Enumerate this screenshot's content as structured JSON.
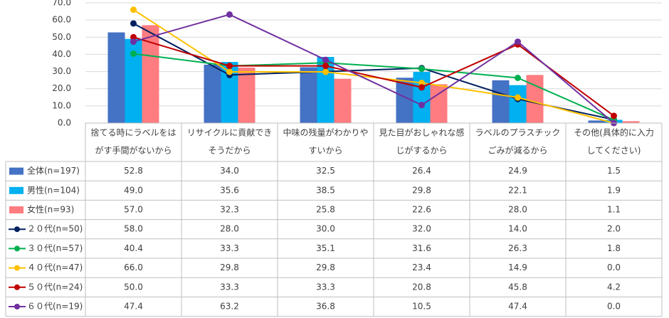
{
  "chart_data": {
    "type": "bar+line",
    "title": "",
    "ylim": [
      0,
      70
    ],
    "yticks": [
      "0.0",
      "10.0",
      "20.0",
      "30.0",
      "40.0",
      "50.0",
      "60.0",
      "70.0"
    ],
    "grid": true,
    "categories": [
      [
        "捨てる時にラベルをは",
        "がす手間がないから"
      ],
      [
        "リサイクルに貢献でき",
        "そうだから"
      ],
      [
        "中味の残量がわかりや",
        "すいから"
      ],
      [
        "見た目がおしゃれな感",
        "じがするから"
      ],
      [
        "ラベルのプラスチック",
        "ごみが減るから"
      ],
      [
        "その他(具体的に入力",
        "してください)"
      ]
    ],
    "series": [
      {
        "name": "全体(n=197)",
        "kind": "bar",
        "color": "#4472c4",
        "values": [
          52.8,
          34.0,
          32.5,
          26.4,
          24.9,
          1.5
        ],
        "labels": [
          "52.8",
          "34.0",
          "32.5",
          "26.4",
          "24.9",
          "1.5"
        ]
      },
      {
        "name": "男性(n=104)",
        "kind": "bar",
        "color": "#00b0f0",
        "values": [
          49.0,
          35.6,
          38.5,
          29.8,
          22.1,
          1.9
        ],
        "labels": [
          "49.0",
          "35.6",
          "38.5",
          "29.8",
          "22.1",
          "1.9"
        ]
      },
      {
        "name": "女性(n=93)",
        "kind": "bar",
        "color": "#ff7c80",
        "values": [
          57.0,
          32.3,
          25.8,
          22.6,
          28.0,
          1.1
        ],
        "labels": [
          "57.0",
          "32.3",
          "25.8",
          "22.6",
          "28.0",
          "1.1"
        ]
      },
      {
        "name": "２０代(n=50)",
        "kind": "line",
        "color": "#002060",
        "values": [
          58.0,
          28.0,
          30.0,
          32.0,
          14.0,
          2.0
        ],
        "labels": [
          "58.0",
          "28.0",
          "30.0",
          "32.0",
          "14.0",
          "2.0"
        ]
      },
      {
        "name": "３０代(n=57)",
        "kind": "line",
        "color": "#00b050",
        "values": [
          40.4,
          33.3,
          35.1,
          31.6,
          26.3,
          1.8
        ],
        "labels": [
          "40.4",
          "33.3",
          "35.1",
          "31.6",
          "26.3",
          "1.8"
        ]
      },
      {
        "name": "４０代(n=47)",
        "kind": "line",
        "color": "#ffc000",
        "values": [
          66.0,
          29.8,
          29.8,
          23.4,
          14.9,
          0.0
        ],
        "labels": [
          "66.0",
          "29.8",
          "29.8",
          "23.4",
          "14.9",
          "0.0"
        ]
      },
      {
        "name": "５０代(n=24)",
        "kind": "line",
        "color": "#c00000",
        "values": [
          50.0,
          33.3,
          33.3,
          20.8,
          45.8,
          4.2
        ],
        "labels": [
          "50.0",
          "33.3",
          "33.3",
          "20.8",
          "45.8",
          "4.2"
        ]
      },
      {
        "name": "６０代(n=19)",
        "kind": "line",
        "color": "#7030a0",
        "values": [
          47.4,
          63.2,
          36.8,
          10.5,
          47.4,
          0.0
        ],
        "labels": [
          "47.4",
          "63.2",
          "36.8",
          "10.5",
          "47.4",
          "0.0"
        ]
      }
    ]
  }
}
